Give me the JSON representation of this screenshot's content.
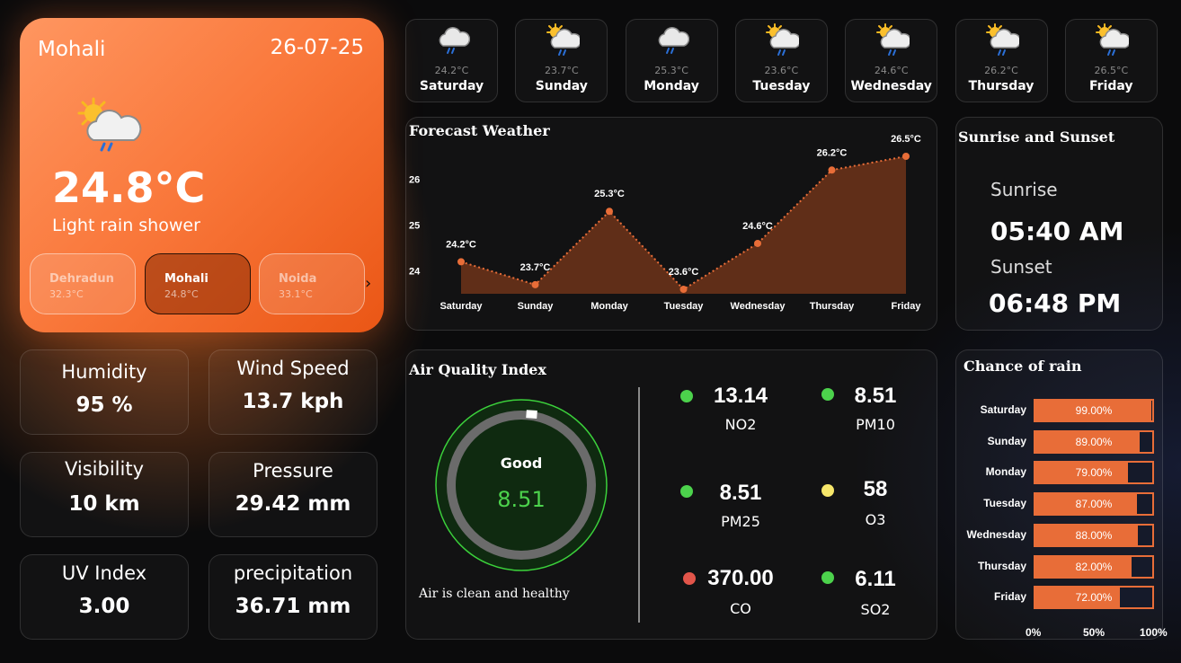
{
  "current": {
    "city": "Mohali",
    "date": "26-07-25",
    "icon": "sun-cloud-rain-icon",
    "temperature": "24.8°C",
    "condition": "Light rain shower"
  },
  "cities": [
    {
      "name": "Dehradun",
      "temp": "32.3°C"
    },
    {
      "name": "Mohali",
      "temp": "24.8°C"
    },
    {
      "name": "Noida",
      "temp": "33.1°C"
    }
  ],
  "stats": {
    "humidity": {
      "label": "Humidity",
      "value": "95 %"
    },
    "wind": {
      "label": "Wind Speed",
      "value": "13.7 kph"
    },
    "visibility": {
      "label": "Visibility",
      "value": "10 km"
    },
    "pressure": {
      "label": "Pressure",
      "value": "29.42 mm"
    },
    "uv": {
      "label": "UV Index",
      "value": "3.00"
    },
    "precipitation": {
      "label": "precipitation",
      "value": "36.71 mm"
    }
  },
  "days": [
    {
      "name": "Saturday",
      "temp": "24.2°C",
      "icon": "cloud-rain-icon"
    },
    {
      "name": "Sunday",
      "temp": "23.7°C",
      "icon": "sun-cloud-rain-icon"
    },
    {
      "name": "Monday",
      "temp": "25.3°C",
      "icon": "cloud-rain-icon"
    },
    {
      "name": "Tuesday",
      "temp": "23.6°C",
      "icon": "sun-cloud-rain-icon"
    },
    {
      "name": "Wednesday",
      "temp": "24.6°C",
      "icon": "sun-cloud-rain-icon"
    },
    {
      "name": "Thursday",
      "temp": "26.2°C",
      "icon": "sun-cloud-rain-icon"
    },
    {
      "name": "Friday",
      "temp": "26.5°C",
      "icon": "sun-cloud-rain-icon"
    }
  ],
  "forecast": {
    "title": "Forecast Weather",
    "chart_data": {
      "type": "area",
      "categories": [
        "Saturday",
        "Sunday",
        "Monday",
        "Tuesday",
        "Wednesday",
        "Thursday",
        "Friday"
      ],
      "values": [
        24.2,
        23.7,
        25.3,
        23.6,
        24.6,
        26.2,
        26.5
      ],
      "labels": [
        "24.2°C",
        "23.7°C",
        "25.3°C",
        "23.6°C",
        "24.6°C",
        "26.2°C",
        "26.5°C"
      ],
      "yticks": [
        "24",
        "25",
        "26"
      ],
      "ylim": [
        23.6,
        26.5
      ],
      "color": "#e86d38"
    }
  },
  "sun": {
    "title": "Sunrise and Sunset",
    "sunrise_label": "Sunrise",
    "sunrise": "05:40 AM",
    "sunset_label": "Sunset",
    "sunset": "06:48 PM"
  },
  "aqi": {
    "title": "Air Quality Index",
    "status": "Good",
    "value": "8.51",
    "message": "Air is clean and healthy",
    "pollutants": [
      {
        "name": "NO2",
        "value": "13.14",
        "color": "#4cd24c"
      },
      {
        "name": "PM10",
        "value": "8.51",
        "color": "#4cd24c"
      },
      {
        "name": "PM25",
        "value": "8.51",
        "color": "#4cd24c"
      },
      {
        "name": "O3",
        "value": "58",
        "color": "#f6e66a"
      },
      {
        "name": "CO",
        "value": "370.00",
        "color": "#e2554a"
      },
      {
        "name": "SO2",
        "value": "6.11",
        "color": "#4cd24c"
      }
    ]
  },
  "rain": {
    "title": "Chance of rain",
    "chart_data": {
      "type": "bar",
      "orientation": "horizontal",
      "categories": [
        "Saturday",
        "Sunday",
        "Monday",
        "Tuesday",
        "Wednesday",
        "Thursday",
        "Friday"
      ],
      "values": [
        99,
        89,
        79,
        87,
        88,
        82,
        72
      ],
      "labels": [
        "99.00%",
        "89.00%",
        "79.00%",
        "87.00%",
        "88.00%",
        "82.00%",
        "72.00%"
      ],
      "xticks": [
        "0%",
        "50%",
        "100%"
      ],
      "xlim": [
        0,
        100
      ],
      "color": "#e86d38"
    }
  }
}
